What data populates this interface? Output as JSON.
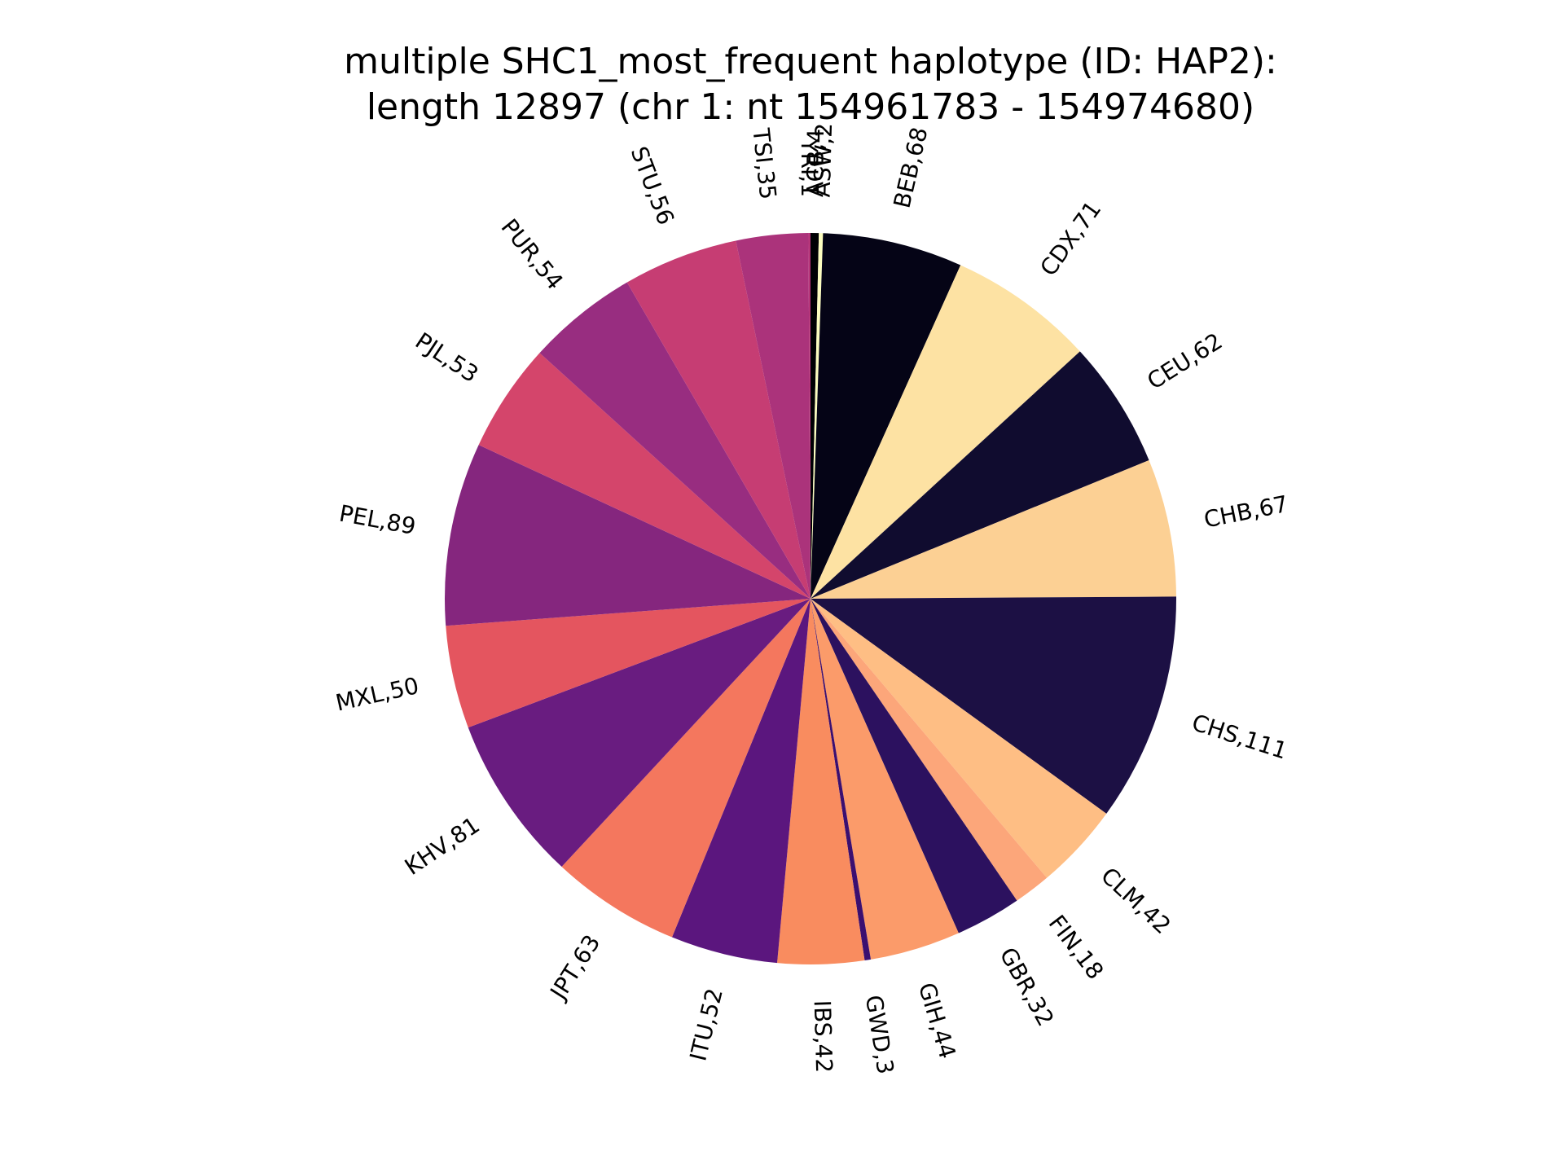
{
  "chart_data": {
    "type": "pie",
    "title": "multiple SHC1_most_frequent haplotype (ID: HAP2):",
    "subtitle": "length 12897 (chr 1: nt 154961783 - 154974680)",
    "start_angle_deg": 90,
    "direction": "clockwise",
    "slices": [
      {
        "label": "ACB",
        "value": 4,
        "text": "ACB,4",
        "color": "#000004"
      },
      {
        "label": "ASW",
        "value": 2,
        "text": "ASW,2",
        "color": "#fcfdbf"
      },
      {
        "label": "BEB",
        "value": 68,
        "text": "BEB,68",
        "color": "#050416"
      },
      {
        "label": "CDX",
        "value": 71,
        "text": "CDX,71",
        "color": "#fde2a3"
      },
      {
        "label": "CEU",
        "value": 62,
        "text": "CEU,62",
        "color": "#100c2f"
      },
      {
        "label": "CHB",
        "value": 67,
        "text": "CHB,67",
        "color": "#fcd094"
      },
      {
        "label": "CHS",
        "value": 111,
        "text": "CHS,111",
        "color": "#1c1044"
      },
      {
        "label": "CLM",
        "value": 42,
        "text": "CLM,42",
        "color": "#febe84"
      },
      {
        "label": "FIN",
        "value": 18,
        "text": "FIN,18",
        "color": "#fca67a"
      },
      {
        "label": "GBR",
        "value": 32,
        "text": "GBR,32",
        "color": "#2c115f"
      },
      {
        "label": "GIH",
        "value": 44,
        "text": "GIH,44",
        "color": "#fb9b6a"
      },
      {
        "label": "GWD",
        "value": 3,
        "text": "GWD,3",
        "color": "#3b0f70"
      },
      {
        "label": "IBS",
        "value": 42,
        "text": "IBS,42",
        "color": "#f98c5f"
      },
      {
        "label": "ITU",
        "value": 52,
        "text": "ITU,52",
        "color": "#5b167e"
      },
      {
        "label": "JPT",
        "value": 63,
        "text": "JPT,63",
        "color": "#f4775e"
      },
      {
        "label": "KHV",
        "value": 81,
        "text": "KHV,81",
        "color": "#691c80"
      },
      {
        "label": "MXL",
        "value": 50,
        "text": "MXL,50",
        "color": "#e4555f"
      },
      {
        "label": "PEL",
        "value": 89,
        "text": "PEL,89",
        "color": "#85267e"
      },
      {
        "label": "PJL",
        "value": 53,
        "text": "PJL,53",
        "color": "#d4456b"
      },
      {
        "label": "PUR",
        "value": 54,
        "text": "PUR,54",
        "color": "#982d80"
      },
      {
        "label": "STU",
        "value": 56,
        "text": "STU,56",
        "color": "#c63d73"
      },
      {
        "label": "TSI",
        "value": 35,
        "text": "TSI,35",
        "color": "#ab337b"
      },
      {
        "label": "YRI",
        "value": 1,
        "text": "YRI,1",
        "color": "#b7377a"
      }
    ]
  }
}
